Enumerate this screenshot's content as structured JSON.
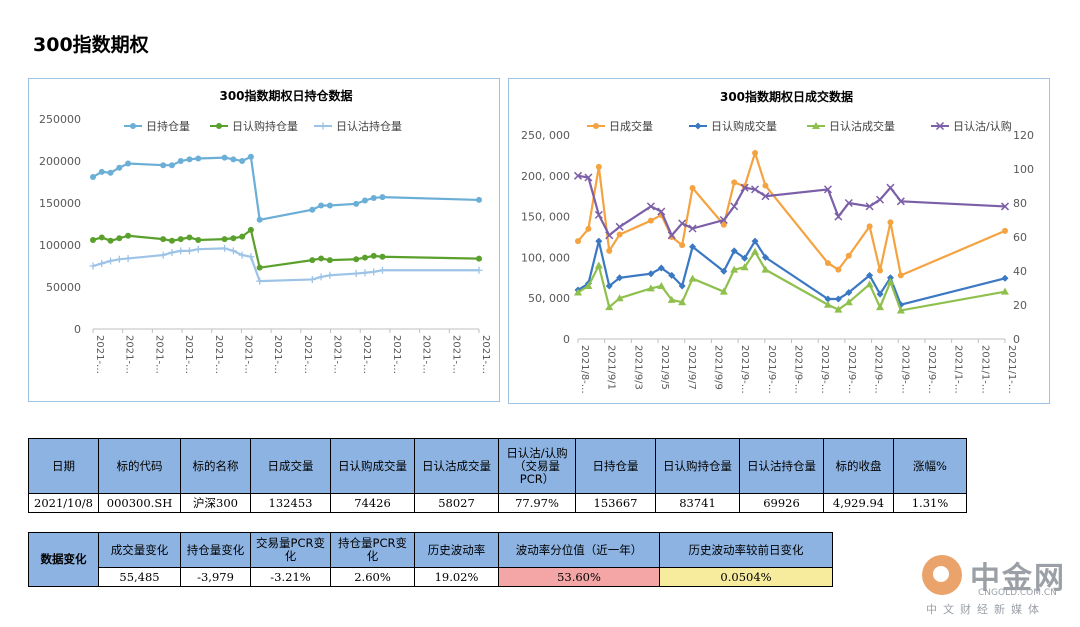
{
  "page_title": "300指数期权",
  "chart_data": [
    {
      "type": "line",
      "title": "300指数期权日持仓数据",
      "xlabel": "",
      "ylabel": "",
      "ylim": [
        0,
        250000
      ],
      "y_ticks": [
        "250000",
        "200000",
        "150000",
        "100000",
        "50000",
        "0"
      ],
      "x_tick_labels": [
        "2021-…",
        "2021-…",
        "2021-…",
        "2021-…",
        "2021-…",
        "2021-…",
        "2021-…",
        "2021-…",
        "2021-…",
        "2021-…",
        "2021-…",
        "2021-…",
        "2021-…",
        "2021-…"
      ],
      "legend_position": "top",
      "grid": false,
      "series": [
        {
          "name": "日持仓量",
          "color": "#6baed6",
          "marker": "circle",
          "points": [
            [
              0,
              181000
            ],
            [
              1,
              187000
            ],
            [
              2,
              186000
            ],
            [
              3,
              192000
            ],
            [
              4,
              197000
            ],
            [
              8,
              195000
            ],
            [
              9,
              195000
            ],
            [
              10,
              200000
            ],
            [
              11,
              202000
            ],
            [
              12,
              203000
            ],
            [
              15,
              204000
            ],
            [
              16,
              202000
            ],
            [
              17,
              200000
            ],
            [
              18,
              205000
            ],
            [
              19,
              130000
            ],
            [
              25,
              142000
            ],
            [
              26,
              147000
            ],
            [
              27,
              147000
            ],
            [
              30,
              149000
            ],
            [
              31,
              153000
            ],
            [
              32,
              156000
            ],
            [
              33,
              157000
            ],
            [
              44,
              153667
            ]
          ]
        },
        {
          "name": "日认购持仓量",
          "color": "#5aa02c",
          "marker": "circle",
          "points": [
            [
              0,
              106000
            ],
            [
              1,
              109000
            ],
            [
              2,
              105000
            ],
            [
              3,
              108000
            ],
            [
              4,
              111000
            ],
            [
              8,
              107000
            ],
            [
              9,
              105000
            ],
            [
              10,
              107000
            ],
            [
              11,
              109000
            ],
            [
              12,
              106000
            ],
            [
              15,
              107000
            ],
            [
              16,
              108000
            ],
            [
              17,
              110000
            ],
            [
              18,
              118000
            ],
            [
              19,
              73000
            ],
            [
              25,
              82000
            ],
            [
              26,
              84000
            ],
            [
              27,
              82000
            ],
            [
              30,
              83000
            ],
            [
              31,
              85000
            ],
            [
              32,
              87000
            ],
            [
              33,
              86000
            ],
            [
              44,
              83741
            ]
          ]
        },
        {
          "name": "日认沽持仓量",
          "color": "#9dc3e6",
          "marker": "cross",
          "points": [
            [
              0,
              75000
            ],
            [
              1,
              78000
            ],
            [
              2,
              81000
            ],
            [
              3,
              83000
            ],
            [
              4,
              84000
            ],
            [
              8,
              88000
            ],
            [
              9,
              91000
            ],
            [
              10,
              93000
            ],
            [
              11,
              93000
            ],
            [
              12,
              95000
            ],
            [
              15,
              96000
            ],
            [
              16,
              93000
            ],
            [
              17,
              88000
            ],
            [
              18,
              86000
            ],
            [
              19,
              57000
            ],
            [
              25,
              59000
            ],
            [
              26,
              62000
            ],
            [
              27,
              64000
            ],
            [
              30,
              66000
            ],
            [
              31,
              67000
            ],
            [
              32,
              68000
            ],
            [
              33,
              70000
            ],
            [
              44,
              69926
            ]
          ]
        }
      ]
    },
    {
      "type": "line",
      "title": "300指数期权日成交数据",
      "xlabel": "",
      "ylabel": "",
      "ylim": [
        0,
        250000
      ],
      "y2lim": [
        0,
        120
      ],
      "y_ticks": [
        "250, 000",
        "200, 000",
        "150, 000",
        "100, 000",
        "50, 000",
        "0"
      ],
      "y2_ticks": [
        "120",
        "100",
        "80",
        "60",
        "40",
        "20",
        "0"
      ],
      "x_tick_labels": [
        "2021/8-…",
        "2021/9/1",
        "2021/9/3",
        "2021/9/5",
        "2021/9/7",
        "2021/9/9",
        "2021/9-…",
        "2021/9-…",
        "2021/9-…",
        "2021/9-…",
        "2021/9-…",
        "2021/9-…",
        "2021/9-…",
        "2021/9-…",
        "2021/1-…",
        "2021/1-…",
        "2021/1-…"
      ],
      "legend_position": "top",
      "grid": false,
      "series": [
        {
          "name": "日成交量",
          "color": "#f4a340",
          "marker": "circle",
          "axis": "left",
          "points": [
            [
              0,
              120000
            ],
            [
              1,
              135000
            ],
            [
              2,
              211000
            ],
            [
              3,
              108000
            ],
            [
              4,
              128000
            ],
            [
              7,
              145000
            ],
            [
              8,
              152000
            ],
            [
              9,
              125000
            ],
            [
              10,
              115000
            ],
            [
              11,
              185000
            ],
            [
              14,
              140000
            ],
            [
              15,
              192000
            ],
            [
              16,
              187000
            ],
            [
              17,
              228000
            ],
            [
              18,
              188000
            ],
            [
              24,
              93000
            ],
            [
              25,
              85000
            ],
            [
              26,
              102000
            ],
            [
              28,
              138000
            ],
            [
              29,
              84000
            ],
            [
              30,
              143000
            ],
            [
              31,
              78000
            ],
            [
              41,
              132453
            ]
          ]
        },
        {
          "name": "日认购成交量",
          "color": "#3a78c3",
          "marker": "diamond",
          "axis": "left",
          "points": [
            [
              0,
              60000
            ],
            [
              1,
              68000
            ],
            [
              2,
              120000
            ],
            [
              3,
              65000
            ],
            [
              4,
              75000
            ],
            [
              7,
              80000
            ],
            [
              8,
              87000
            ],
            [
              9,
              78000
            ],
            [
              10,
              65000
            ],
            [
              11,
              113000
            ],
            [
              14,
              83000
            ],
            [
              15,
              108000
            ],
            [
              16,
              99000
            ],
            [
              17,
              120000
            ],
            [
              18,
              100000
            ],
            [
              24,
              49000
            ],
            [
              25,
              49000
            ],
            [
              26,
              57000
            ],
            [
              28,
              78000
            ],
            [
              29,
              55000
            ],
            [
              30,
              75000
            ],
            [
              31,
              42000
            ],
            [
              41,
              74426
            ]
          ]
        },
        {
          "name": "日认沽成交量",
          "color": "#8fc04d",
          "marker": "triangle",
          "axis": "left",
          "points": [
            [
              0,
              57000
            ],
            [
              1,
              65000
            ],
            [
              2,
              90000
            ],
            [
              3,
              39000
            ],
            [
              4,
              50000
            ],
            [
              7,
              62000
            ],
            [
              8,
              65000
            ],
            [
              9,
              48000
            ],
            [
              10,
              45000
            ],
            [
              11,
              74000
            ],
            [
              14,
              58000
            ],
            [
              15,
              85000
            ],
            [
              16,
              88000
            ],
            [
              17,
              107000
            ],
            [
              18,
              85000
            ],
            [
              24,
              42000
            ],
            [
              25,
              36000
            ],
            [
              26,
              45000
            ],
            [
              28,
              67000
            ],
            [
              29,
              39000
            ],
            [
              30,
              70000
            ],
            [
              31,
              35000
            ],
            [
              41,
              58027
            ]
          ]
        },
        {
          "name": "日认沽/认购",
          "color": "#7b5fa7",
          "marker": "x",
          "axis": "right",
          "points": [
            [
              0,
              96
            ],
            [
              1,
              95
            ],
            [
              2,
              73
            ],
            [
              3,
              61
            ],
            [
              4,
              66
            ],
            [
              7,
              78
            ],
            [
              8,
              75
            ],
            [
              9,
              61
            ],
            [
              10,
              68
            ],
            [
              11,
              65
            ],
            [
              14,
              70
            ],
            [
              15,
              78
            ],
            [
              16,
              89
            ],
            [
              17,
              88
            ],
            [
              18,
              84
            ],
            [
              24,
              88
            ],
            [
              25,
              72
            ],
            [
              26,
              80
            ],
            [
              28,
              78
            ],
            [
              29,
              82
            ],
            [
              30,
              89
            ],
            [
              31,
              81
            ],
            [
              41,
              77.97
            ]
          ]
        }
      ]
    }
  ],
  "table1": {
    "headers": [
      "日期",
      "标的代码",
      "标的名称",
      "日成交量",
      "日认购成交量",
      "日认沽成交量",
      "日认沽/认购（交易量PCR）",
      "日持仓量",
      "日认购持仓量",
      "日认沽持仓量",
      "标的收盘",
      "涨幅%"
    ],
    "row": [
      "2021/10/8",
      "000300.SH",
      "沪深300",
      "132453",
      "74426",
      "58027",
      "77.97%",
      "153667",
      "83741",
      "69926",
      "4,929.94",
      "1.31%"
    ]
  },
  "table2": {
    "row_header": "数据变化",
    "headers": [
      "成交量变化",
      "持仓量变化",
      "交易量PCR变化",
      "持仓量PCR变化",
      "历史波动率",
      "波动率分位值（近一年）",
      "历史波动率较前日变化"
    ],
    "row": [
      "55,485",
      "-3,979",
      "-3.21%",
      "2.60%",
      "19.02%",
      "53.60%",
      "0.0504%"
    ],
    "highlight_colors": {
      "pink": "#f4a6a6",
      "yellow": "#f7eb9e"
    }
  },
  "watermark": {
    "name": "中金网",
    "site": "CNGOLD.COM.CN",
    "sub": "中文财经新媒体"
  }
}
